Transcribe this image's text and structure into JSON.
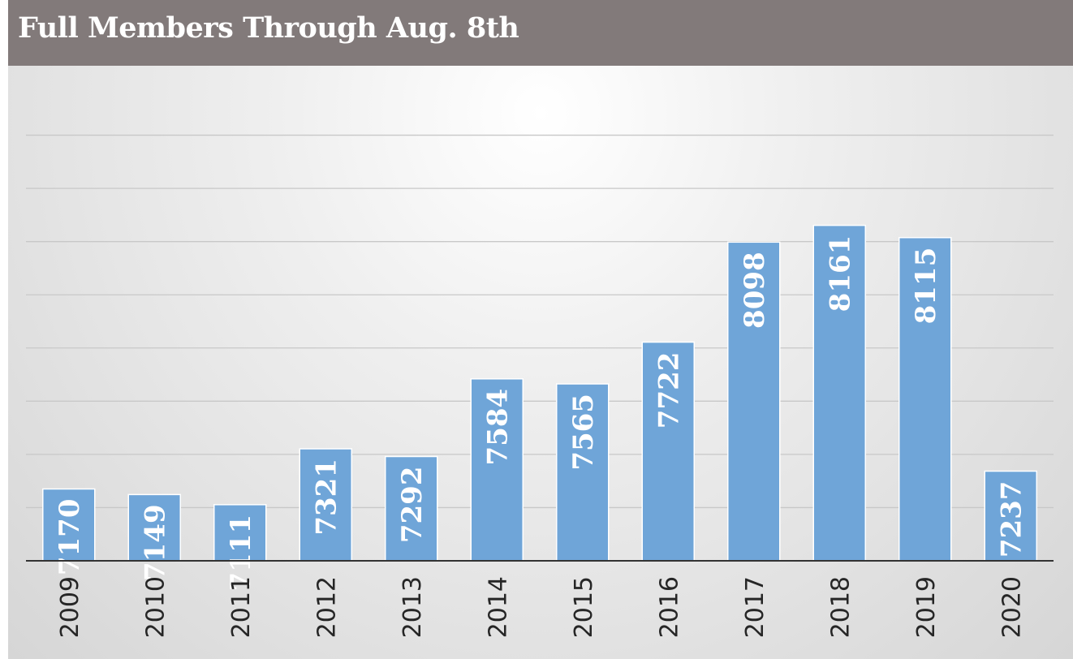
{
  "title": "Full Members Through Aug. 8th",
  "chart_data": {
    "type": "bar",
    "title": "Full Members Through Aug. 8th",
    "categories": [
      "2009",
      "2010",
      "2011",
      "2012",
      "2013",
      "2014",
      "2015",
      "2016",
      "2017",
      "2018",
      "2019",
      "2020"
    ],
    "values": [
      7170,
      7149,
      7111,
      7321,
      7292,
      7584,
      7565,
      7722,
      8098,
      8161,
      8115,
      7237
    ],
    "xlabel": "",
    "ylabel": "",
    "ylim": [
      6900,
      8700
    ],
    "grid": true,
    "legend": "none",
    "data_labels": "inside-end-rotated",
    "colors": {
      "bar": "#6fa5d8",
      "bar_edge": "#ffffff",
      "label": "#ffffff",
      "gridline": "#c8c8c8",
      "axis": "#333333",
      "tick_label": "#262626",
      "title_bar": "#827a7a",
      "title_text": "#ffffff"
    }
  }
}
